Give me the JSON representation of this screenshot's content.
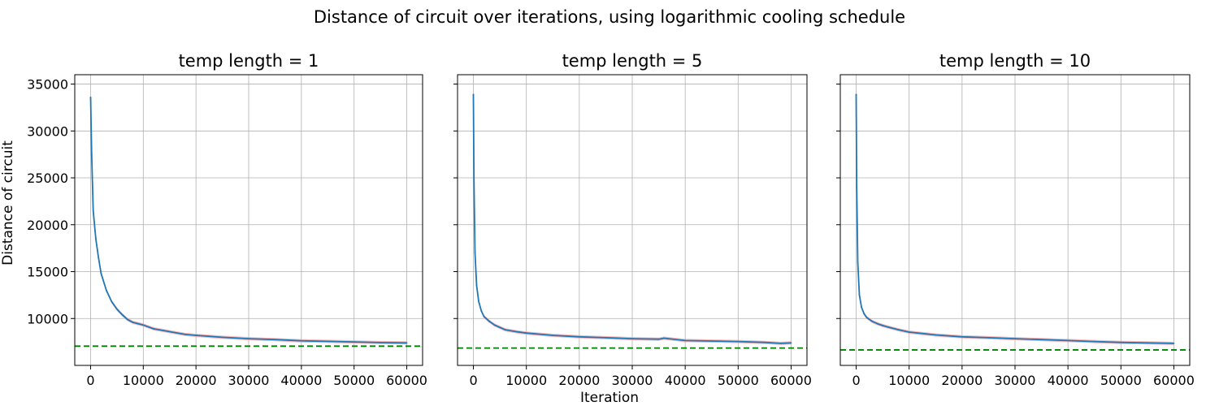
{
  "suptitle": "Distance of circuit over iterations, using logarithmic cooling schedule",
  "xlabel": "Iteration",
  "ylabel": "Distance of circuit",
  "colors": {
    "line": "#1f77b4",
    "band": "#f4a6a6",
    "reference": "#008000",
    "grid": "#b0b0b0"
  },
  "chart_data": [
    {
      "type": "line",
      "title": "temp length = 1",
      "xlim": [
        -3000,
        63000
      ],
      "ylim": [
        5000,
        36000
      ],
      "xticks": [
        0,
        10000,
        20000,
        30000,
        40000,
        50000,
        60000
      ],
      "yticks": [
        10000,
        15000,
        20000,
        25000,
        30000,
        35000
      ],
      "ytick_labels_shown": true,
      "grid": true,
      "reference_line": 7050,
      "series": [
        {
          "x": [
            0,
            200,
            500,
            1000,
            1500,
            2000,
            3000,
            4000,
            5000,
            6000,
            7000,
            8000,
            9000,
            10000,
            12000,
            14000,
            16000,
            18000,
            20000,
            25000,
            30000,
            35000,
            40000,
            45000,
            50000,
            55000,
            60000
          ],
          "y": [
            33600,
            27500,
            21500,
            18500,
            16500,
            14800,
            13000,
            11800,
            11000,
            10400,
            9900,
            9600,
            9450,
            9300,
            8900,
            8700,
            8500,
            8300,
            8200,
            8000,
            7850,
            7750,
            7620,
            7560,
            7500,
            7430,
            7400
          ]
        }
      ]
    },
    {
      "type": "line",
      "title": "temp length = 5",
      "xlim": [
        -3000,
        63000
      ],
      "ylim": [
        5000,
        36000
      ],
      "xticks": [
        0,
        10000,
        20000,
        30000,
        40000,
        50000,
        60000
      ],
      "yticks": [
        10000,
        15000,
        20000,
        25000,
        30000,
        35000
      ],
      "ytick_labels_shown": false,
      "grid": true,
      "reference_line": 6850,
      "series": [
        {
          "x": [
            0,
            100,
            300,
            600,
            1000,
            1500,
            2000,
            3000,
            4000,
            5000,
            6000,
            8000,
            10000,
            15000,
            20000,
            25000,
            30000,
            35000,
            36000,
            40000,
            45000,
            50000,
            55000,
            58000,
            60000
          ],
          "y": [
            33900,
            25000,
            17000,
            13500,
            11800,
            10800,
            10200,
            9700,
            9300,
            9050,
            8800,
            8600,
            8450,
            8200,
            8050,
            7950,
            7850,
            7800,
            7900,
            7650,
            7600,
            7550,
            7450,
            7350,
            7400
          ]
        }
      ]
    },
    {
      "type": "line",
      "title": "temp length = 10",
      "xlim": [
        -3000,
        63000
      ],
      "ylim": [
        5000,
        36000
      ],
      "xticks": [
        0,
        10000,
        20000,
        30000,
        40000,
        50000,
        60000
      ],
      "yticks": [
        10000,
        15000,
        20000,
        25000,
        30000,
        35000
      ],
      "ytick_labels_shown": false,
      "grid": true,
      "reference_line": 6650,
      "series": [
        {
          "x": [
            0,
            100,
            300,
            600,
            1000,
            1500,
            2000,
            3000,
            4000,
            5000,
            6000,
            8000,
            10000,
            15000,
            20000,
            25000,
            30000,
            35000,
            40000,
            45000,
            50000,
            55000,
            60000
          ],
          "y": [
            33900,
            24000,
            16000,
            12500,
            11200,
            10500,
            10100,
            9700,
            9450,
            9250,
            9100,
            8800,
            8550,
            8250,
            8050,
            7950,
            7850,
            7750,
            7650,
            7550,
            7450,
            7400,
            7350
          ]
        }
      ]
    }
  ]
}
